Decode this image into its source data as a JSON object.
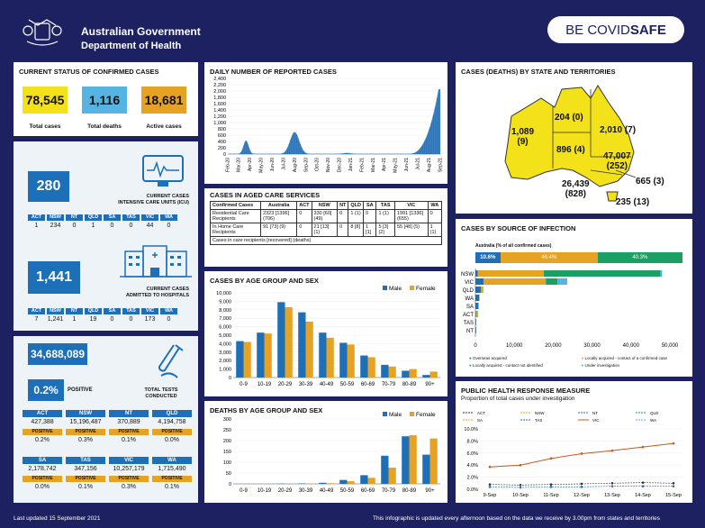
{
  "header": {
    "gov_line1": "Australian Government",
    "gov_line2": "Department of Health",
    "badge_be": "BE COVID",
    "badge_safe": "SAFE"
  },
  "status": {
    "title": "CURRENT STATUS OF CONFIRMED CASES",
    "total_cases": "78,545",
    "total_cases_label": "Total cases",
    "total_deaths": "1,116",
    "total_deaths_label": "Total deaths",
    "active_cases": "18,681",
    "active_cases_label": "Active cases"
  },
  "icu": {
    "value": "280",
    "label1": "CURRENT CASES",
    "label2": "INTENSIVE CARE UNITS (ICU)",
    "states": [
      "ACT",
      "NSW",
      "NT",
      "QLD",
      "SA",
      "TAS",
      "VIC",
      "WA"
    ],
    "values": [
      "1",
      "234",
      "0",
      "1",
      "0",
      "0",
      "44",
      "0"
    ]
  },
  "hospital": {
    "value": "1,441",
    "label1": "CURRENT CASES",
    "label2": "ADMITTED TO HOSPITALS",
    "states": [
      "ACT",
      "NSW",
      "NT",
      "QLD",
      "SA",
      "TAS",
      "VIC",
      "WA"
    ],
    "values": [
      "7",
      "1,241",
      "1",
      "19",
      "0",
      "0",
      "173",
      "0"
    ]
  },
  "tests": {
    "value": "34,688,089",
    "positive_pct": "0.2%",
    "positive_label": "POSITIVE",
    "label1": "TOTAL TESTS",
    "label2": "CONDUCTED",
    "positive_tag": "POSITIVE",
    "row1": [
      {
        "state": "ACT",
        "tests": "427,388",
        "pct": "0.2%"
      },
      {
        "state": "NSW",
        "tests": "15,196,487",
        "pct": "0.3%"
      },
      {
        "state": "NT",
        "tests": "370,889",
        "pct": "0.1%"
      },
      {
        "state": "QLD",
        "tests": "4,194,758",
        "pct": "0.0%"
      }
    ],
    "row2": [
      {
        "state": "SA",
        "tests": "2,178,742",
        "pct": "0.0%"
      },
      {
        "state": "TAS",
        "tests": "347,156",
        "pct": "0.1%"
      },
      {
        "state": "VIC",
        "tests": "10,257,179",
        "pct": "0.3%"
      },
      {
        "state": "WA",
        "tests": "1,715,490",
        "pct": "0.1%"
      }
    ]
  },
  "daily": {
    "title": "DAILY NUMBER OF REPORTED CASES",
    "y_ticks": [
      "2,400",
      "2,200",
      "2,000",
      "1,800",
      "1,600",
      "1,400",
      "1,200",
      "1,000",
      "800",
      "600",
      "400",
      "200",
      "0"
    ],
    "x_labels": [
      "Feb-20",
      "Mar-20",
      "Apr-20",
      "May-20",
      "Jun-20",
      "Jul-20",
      "Aug-20",
      "Sep-20",
      "Oct-20",
      "Nov-20",
      "Dec-20",
      "Jan-21",
      "Feb-21",
      "Mar-21",
      "Apr-21",
      "May-21",
      "Jun-21",
      "Jul-21",
      "Aug-21",
      "Sep-21"
    ]
  },
  "aged": {
    "title": "CASES IN AGED CARE SERVICES",
    "headers": [
      "Confirmed Cases",
      "Australia",
      "ACT",
      "NSW",
      "NT",
      "QLD",
      "SA",
      "TAS",
      "VIC",
      "WA"
    ],
    "row1": [
      "Residential Care Recipients",
      "2323 [1396] (706)",
      "0",
      "330 [60] (49)",
      "0",
      "1 (1)",
      "0",
      "1 (1)",
      "1991 [1336] (655)",
      "0"
    ],
    "row2": [
      "In Home Care Recipients",
      "91 [73] (9)",
      "0",
      "21 [13] (1)",
      "0",
      "8 [8]",
      "1 [1]",
      "5 [3] (2)",
      "55 [48] (5)",
      "1 (1)"
    ],
    "note": "Cases in care recipients [recovered] (deaths)"
  },
  "agesex": {
    "title": "CASES BY AGE GROUP AND SEX",
    "legend_male": "Male",
    "legend_female": "Female",
    "y_ticks": [
      "10,000",
      "9,000",
      "8,000",
      "7,000",
      "6,000",
      "5,000",
      "4,000",
      "3,000",
      "2,000",
      "1,000",
      "0"
    ]
  },
  "deaths_agesex": {
    "title": "DEATHS BY AGE GROUP AND SEX",
    "legend_male": "Male",
    "legend_female": "Female",
    "y_ticks": [
      "300",
      "250",
      "200",
      "150",
      "100",
      "50",
      "0"
    ]
  },
  "map": {
    "title": "CASES (DEATHS) BY STATE AND TERRITORIES",
    "wa": "1,089",
    "wa_d": "(9)",
    "nt": "204 (0)",
    "sa": "896 (4)",
    "qld": "2,010 (7)",
    "nsw": "47,007",
    "nsw_d": "(252)",
    "act": "665 (3)",
    "vic": "26,439",
    "vic_d": "(828)",
    "tas": "235 (13)"
  },
  "source": {
    "title": "CASES BY SOURCE OF INFECTION",
    "aus_label": "Australia (% of all confirmed cases)",
    "pct1": "10.6%",
    "pct2": "46.4%",
    "pct3": "40.3%",
    "states": [
      "NSW",
      "VIC",
      "QLD",
      "WA",
      "SA",
      "ACT",
      "TAS",
      "NT"
    ],
    "x_ticks": [
      "0",
      "10,000",
      "20,000",
      "30,000",
      "40,000",
      "50,000"
    ],
    "legend": [
      "Overseas acquired",
      "Locally acquired - contact of a confirmed case",
      "Locally acquired - contact not identified",
      "Under investigation"
    ]
  },
  "phrm": {
    "title": "PUBLIC HEALTH RESPONSE MEASURE",
    "subtitle": "Proportion of total cases under investigation",
    "legend": [
      "ACT",
      "NSW",
      "NT",
      "QLD",
      "SA",
      "TAS",
      "VIC",
      "WA"
    ],
    "y_ticks": [
      "10.0%",
      "8.0%",
      "6.0%",
      "4.0%",
      "2.0%",
      "0.0%"
    ],
    "x_labels": [
      "9-Sep",
      "10-Sep",
      "11-Sep",
      "12-Sep",
      "13-Sep",
      "14-Sep",
      "15-Sep"
    ]
  },
  "chart_data": [
    {
      "type": "bar",
      "title": "CASES BY AGE GROUP AND SEX",
      "categories": [
        "0-9",
        "10-19",
        "20-29",
        "30-39",
        "40-49",
        "50-59",
        "60-69",
        "70-79",
        "80-89",
        "90+"
      ],
      "ylim": [
        0,
        10000
      ],
      "series": [
        {
          "name": "Male",
          "values": [
            4300,
            5300,
            8900,
            7700,
            5300,
            4100,
            2600,
            1500,
            800,
            300
          ]
        },
        {
          "name": "Female",
          "values": [
            4200,
            5200,
            8300,
            6600,
            4700,
            3900,
            2400,
            1300,
            1000,
            700
          ]
        }
      ]
    },
    {
      "type": "bar",
      "title": "DEATHS BY AGE GROUP AND SEX",
      "categories": [
        "0-9",
        "10-19",
        "20-29",
        "30-39",
        "40-49",
        "50-59",
        "60-69",
        "70-79",
        "80-89",
        "90+"
      ],
      "ylim": [
        0,
        300
      ],
      "series": [
        {
          "name": "Male",
          "values": [
            0,
            0,
            1,
            2,
            5,
            18,
            40,
            130,
            220,
            135
          ]
        },
        {
          "name": "Female",
          "values": [
            0,
            0,
            0,
            1,
            3,
            12,
            28,
            75,
            225,
            210
          ]
        }
      ]
    },
    {
      "type": "line",
      "title": "PUBLIC HEALTH RESPONSE MEASURE",
      "categories": [
        "9-Sep",
        "10-Sep",
        "11-Sep",
        "12-Sep",
        "13-Sep",
        "14-Sep",
        "15-Sep"
      ],
      "ylim": [
        0,
        10
      ],
      "series": [
        {
          "name": "VIC",
          "values": [
            3.7,
            4.0,
            5.1,
            5.9,
            6.4,
            7.0,
            7.6
          ]
        },
        {
          "name": "NSW",
          "values": [
            0.8,
            0.7,
            0.8,
            0.9,
            1.0,
            1.1,
            1.0
          ]
        },
        {
          "name": "ACT",
          "values": [
            0.4,
            0.3,
            0.4,
            0.4,
            0.5,
            0.5,
            0.5
          ]
        }
      ]
    }
  ]
}
